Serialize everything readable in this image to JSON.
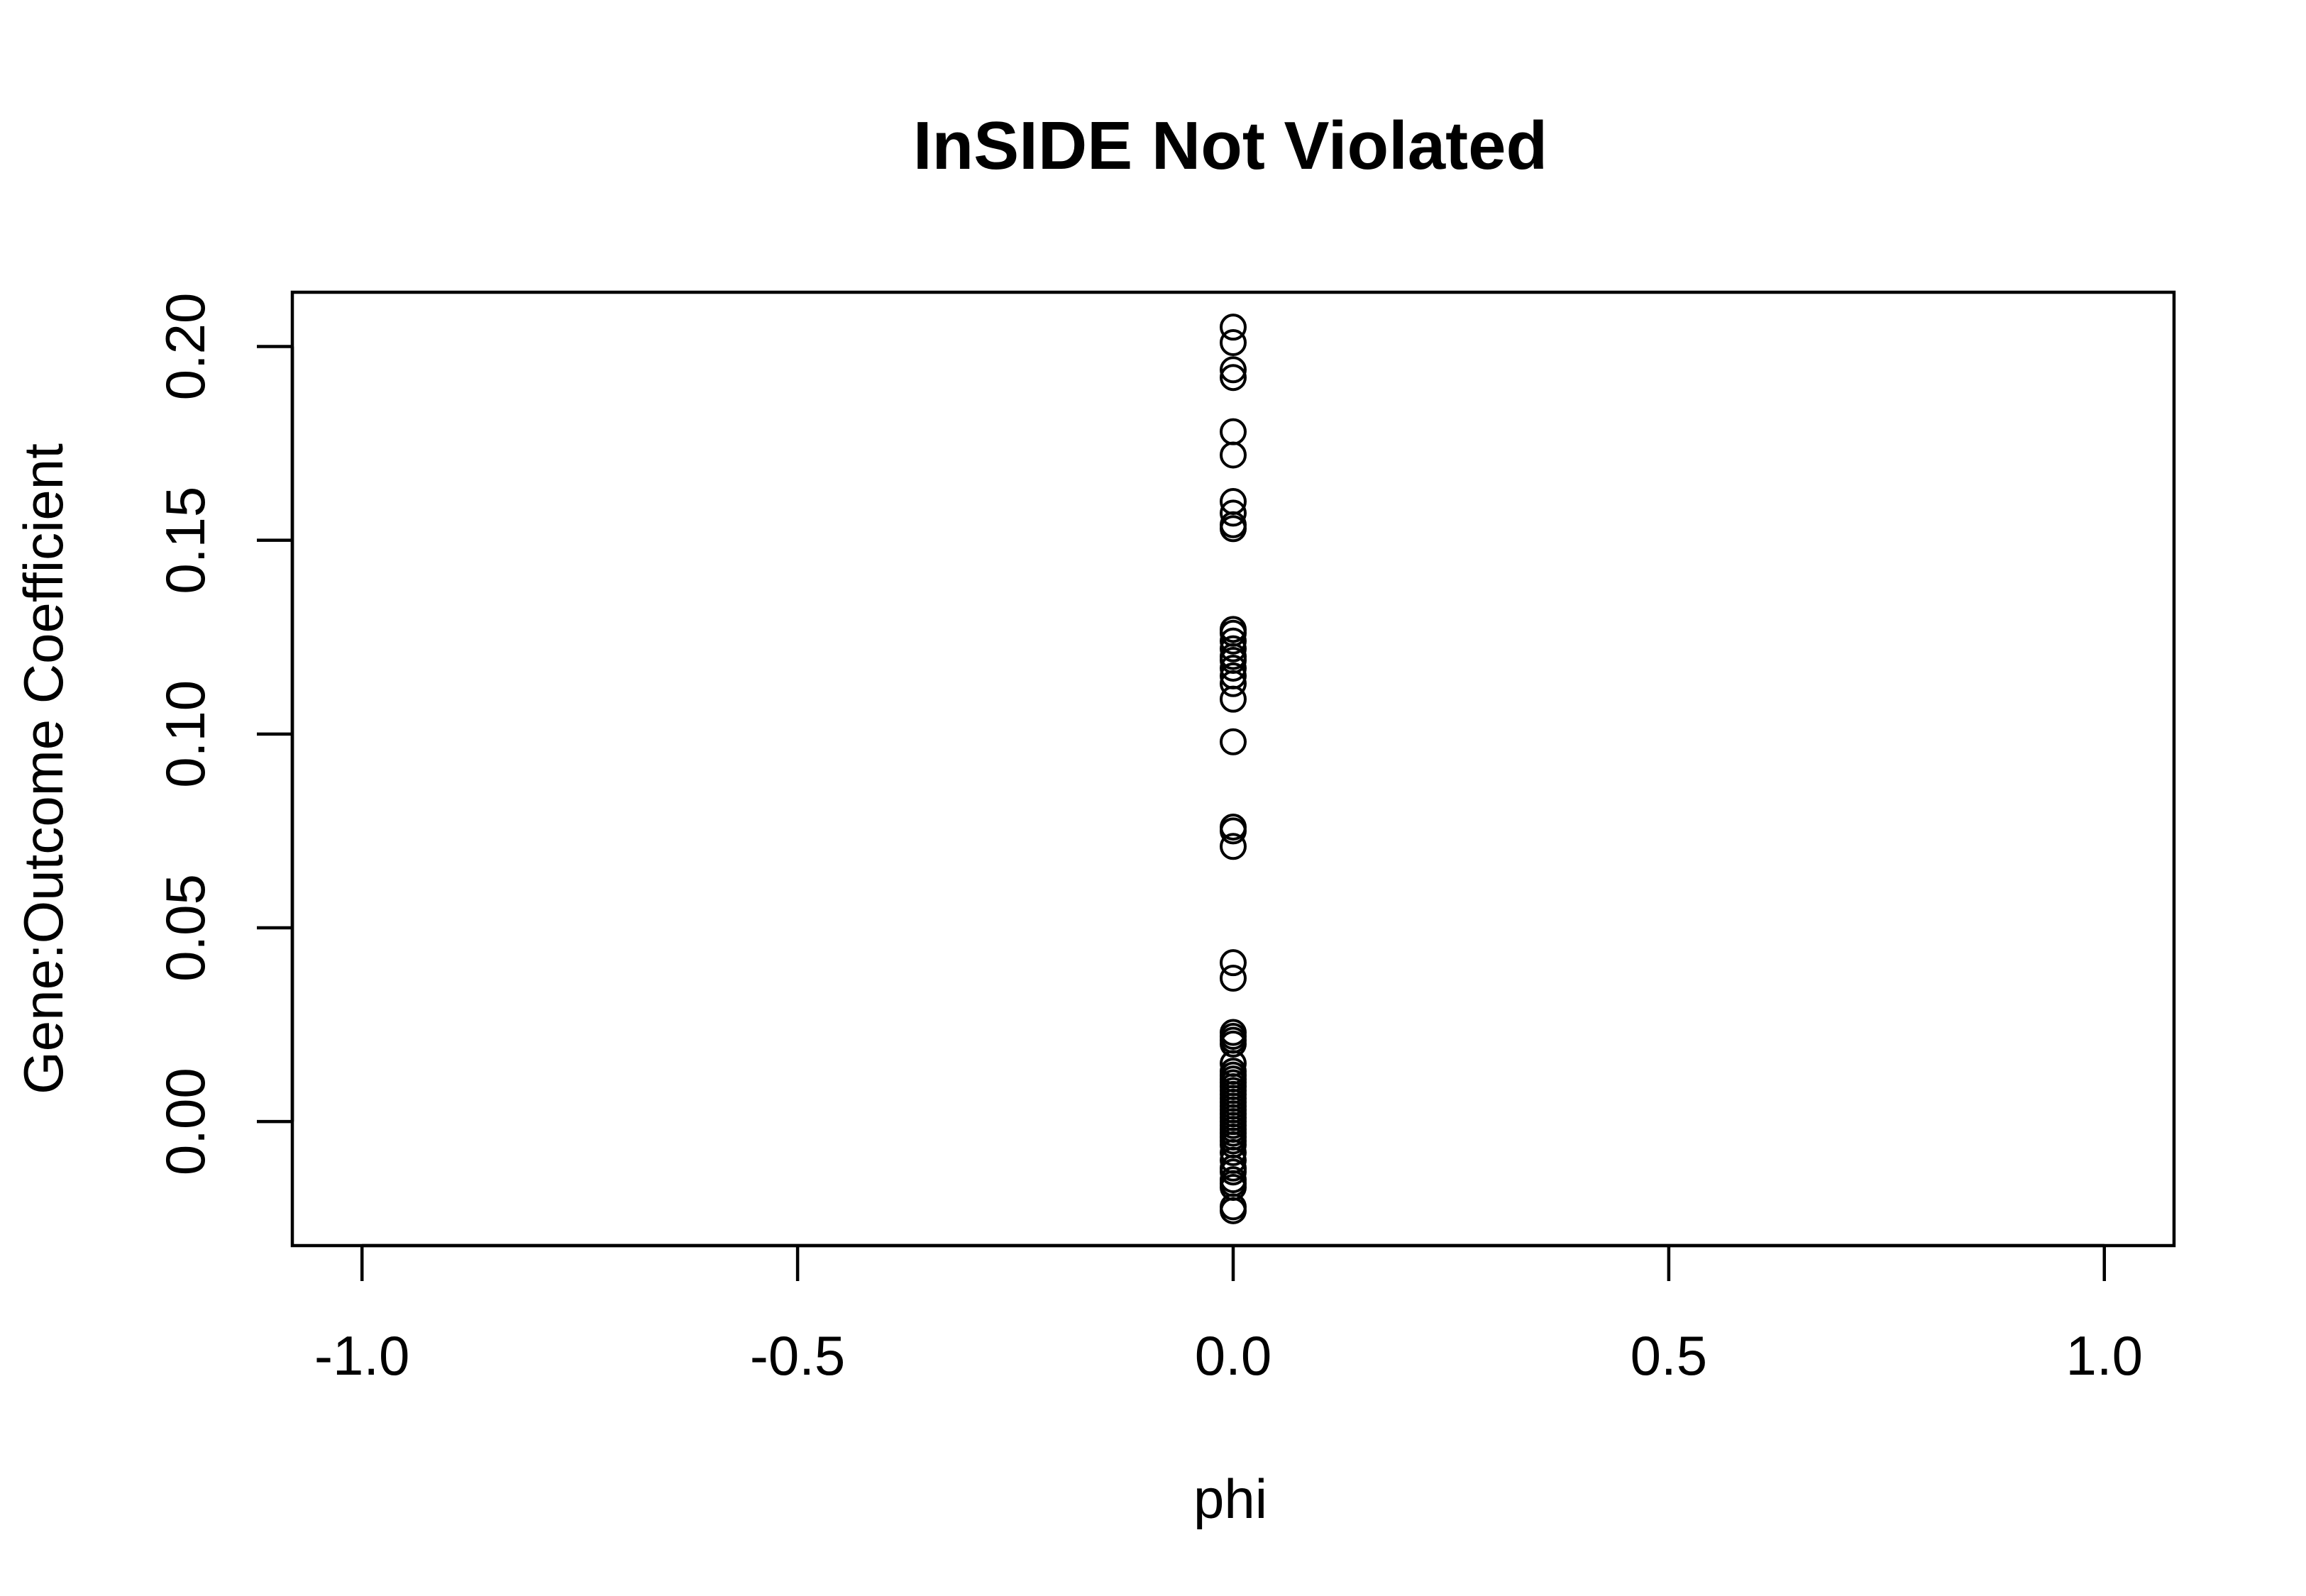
{
  "chart_data": {
    "type": "scatter",
    "title": "InSIDE Not Violated",
    "xlabel": "phi",
    "ylabel": "Gene:Outcome Coefficient",
    "xlim": [
      -1.08,
      1.08
    ],
    "ylim": [
      -0.032,
      0.214
    ],
    "xticks": [
      {
        "value": -1.0,
        "label": "-1.0"
      },
      {
        "value": -0.5,
        "label": "-0.5"
      },
      {
        "value": 0.0,
        "label": "0.0"
      },
      {
        "value": 0.5,
        "label": "0.5"
      },
      {
        "value": 1.0,
        "label": "1.0"
      }
    ],
    "yticks": [
      {
        "value": 0.0,
        "label": "0.00"
      },
      {
        "value": 0.05,
        "label": "0.05"
      },
      {
        "value": 0.1,
        "label": "0.10"
      },
      {
        "value": 0.15,
        "label": "0.15"
      },
      {
        "value": 0.2,
        "label": "0.20"
      }
    ],
    "grid": false,
    "legend": "none",
    "marker": "open-circle",
    "x": [
      0,
      0,
      0,
      0,
      0,
      0,
      0,
      0,
      0,
      0,
      0,
      0,
      0,
      0,
      0,
      0,
      0,
      0,
      0,
      0,
      0,
      0,
      0,
      0,
      0,
      0,
      0,
      0,
      0,
      0,
      0,
      0,
      0,
      0,
      0,
      0,
      0,
      0,
      0,
      0,
      0,
      0,
      0,
      0,
      0,
      0,
      0,
      0,
      0,
      0,
      0,
      0,
      0,
      0,
      0,
      0,
      0,
      0,
      0,
      0
    ],
    "y": [
      0.205,
      0.201,
      0.194,
      0.192,
      0.178,
      0.172,
      0.16,
      0.157,
      0.154,
      0.153,
      0.127,
      0.126,
      0.124,
      0.122,
      0.12,
      0.119,
      0.117,
      0.115,
      0.113,
      0.109,
      0.098,
      0.076,
      0.075,
      0.071,
      0.041,
      0.037,
      0.023,
      0.022,
      0.021,
      0.02,
      0.015,
      0.013,
      0.012,
      0.011,
      0.01,
      0.009,
      0.008,
      0.007,
      0.006,
      0.005,
      0.004,
      0.003,
      0.002,
      0.001,
      0.0,
      -0.001,
      -0.002,
      -0.003,
      -0.004,
      -0.005,
      -0.006,
      -0.008,
      -0.01,
      -0.012,
      -0.013,
      -0.015,
      -0.016,
      -0.017,
      -0.022,
      -0.023
    ]
  }
}
